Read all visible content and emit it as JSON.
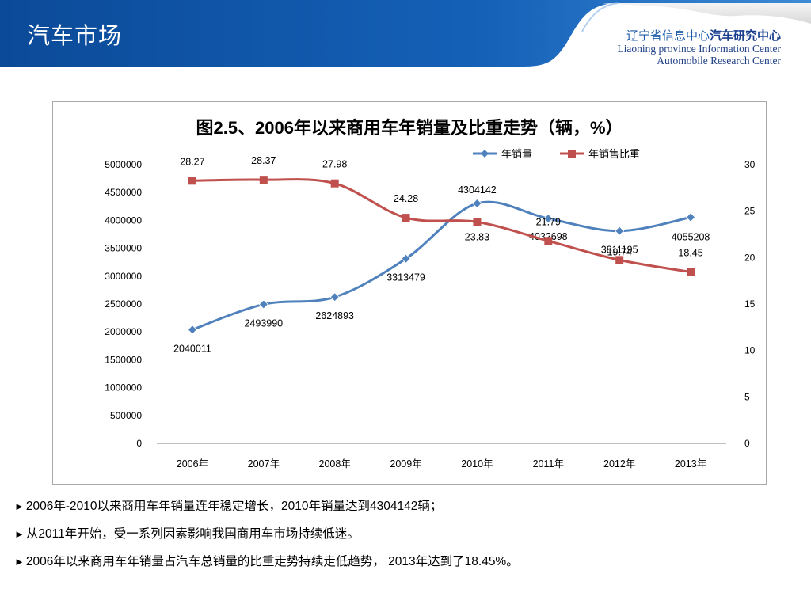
{
  "header": {
    "title": "汽车市场",
    "org_cn_part1": "辽宁省信息中心",
    "org_cn_part2": "汽车研究中心",
    "org_en_line1": "Liaoning province Information Center",
    "org_en_line2": "Automobile Research Center",
    "colors": {
      "banner_dark": "#0d4f9e",
      "banner_light": "#4a8fd6",
      "accent": "#c9c9c9"
    }
  },
  "chart_data": {
    "type": "line",
    "title": "图2.5、2006年以来商用车年销量及比重走势（辆，%）",
    "categories": [
      "2006年",
      "2007年",
      "2008年",
      "2009年",
      "2010年",
      "2011年",
      "2012年",
      "2013年"
    ],
    "y_left": {
      "ticks": [
        "0",
        "500000",
        "1000000",
        "1500000",
        "2000000",
        "2500000",
        "3000000",
        "3500000",
        "4000000",
        "4500000",
        "5000000"
      ],
      "range": [
        0,
        5000000
      ]
    },
    "y_right": {
      "ticks": [
        "0",
        "5",
        "10",
        "15",
        "20",
        "25",
        "30"
      ],
      "range": [
        0,
        30
      ]
    },
    "legend_position": "top-right",
    "series": [
      {
        "name": "年销量",
        "axis": "left",
        "color": "#4f81bd",
        "marker": "diamond",
        "values": [
          2040011,
          2493990,
          2624893,
          3313479,
          4304142,
          4032698,
          3811195,
          4055208
        ],
        "labels": [
          "2040011",
          "2493990",
          "2624893",
          "3313479",
          "4304142",
          "4032698",
          "3811195",
          "4055208"
        ]
      },
      {
        "name": "年销售比重",
        "axis": "right",
        "color": "#c0504d",
        "marker": "square",
        "values": [
          28.27,
          28.37,
          27.98,
          24.28,
          23.83,
          21.79,
          19.74,
          18.45
        ],
        "labels": [
          "28.27",
          "28.37",
          "27.98",
          "24.28",
          "23.83",
          "21.79",
          "19.74",
          "18.45"
        ]
      }
    ]
  },
  "bullets": [
    "2006年-2010以来商用车年销量连年稳定增长，2010年销量达到4304142辆；",
    "从2011年开始，受一系列因素影响我国商用车市场持续低迷。",
    "2006年以来商用车年销量占汽车总销量的比重走势持续走低趋势， 2013年达到了18.45%。"
  ],
  "bullet_marker": "►"
}
